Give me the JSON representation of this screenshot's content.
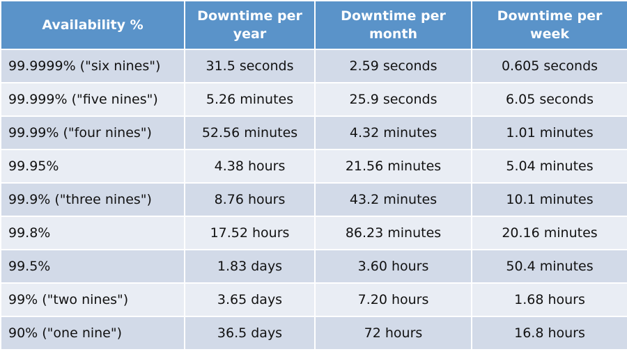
{
  "headers": [
    "Availability %",
    "Downtime per year",
    "Downtime per month",
    "Downtime per week"
  ],
  "rows": [
    [
      "99.9999% (\"six nines\")",
      "31.5 seconds",
      "2.59 seconds",
      "0.605 seconds"
    ],
    [
      "99.999% (\"five nines\")",
      "5.26 minutes",
      "25.9 seconds",
      "6.05 seconds"
    ],
    [
      "99.99% (\"four nines\")",
      "52.56 minutes",
      "4.32 minutes",
      "1.01 minutes"
    ],
    [
      "99.95%",
      "4.38 hours",
      "21.56 minutes",
      "5.04 minutes"
    ],
    [
      "99.9% (\"three nines\")",
      "8.76 hours",
      "43.2 minutes",
      "10.1 minutes"
    ],
    [
      "99.8%",
      "17.52 hours",
      "86.23 minutes",
      "20.16 minutes"
    ],
    [
      "99.5%",
      "1.83 days",
      "3.60 hours",
      "50.4 minutes"
    ],
    [
      "99% (\"two nines\")",
      "3.65 days",
      "7.20 hours",
      "1.68 hours"
    ],
    [
      "90% (\"one nine\")",
      "36.5 days",
      "72 hours",
      "16.8 hours"
    ]
  ],
  "colors": {
    "header": "#5a93c9",
    "row_odd": "#d2dae8",
    "row_even": "#e9edf4"
  }
}
